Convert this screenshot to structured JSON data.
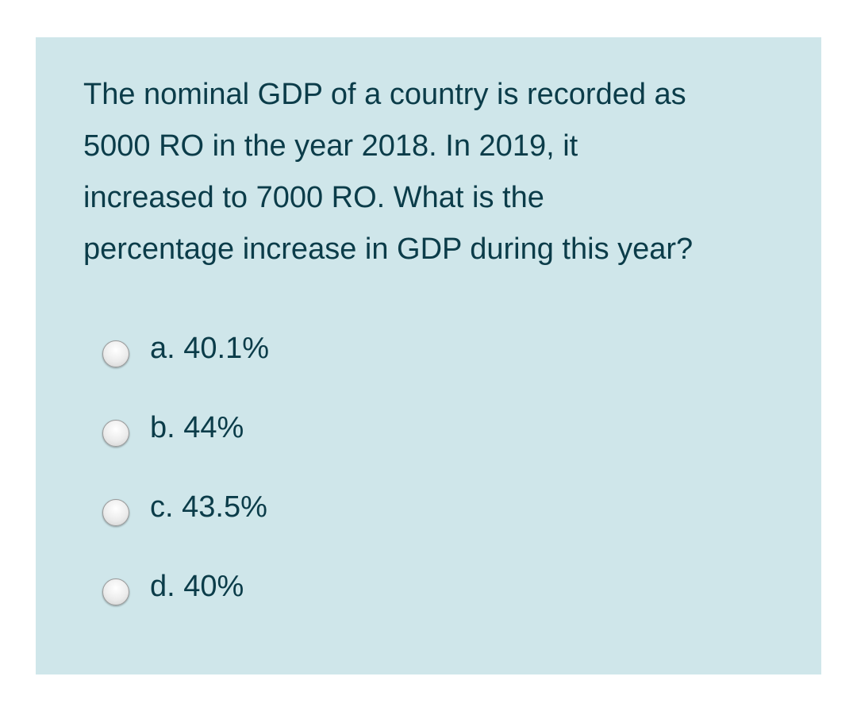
{
  "question": {
    "lines": [
      "The nominal GDP of a country is recorded as",
      "5000 RO in the year 2018. In 2019, it",
      "increased to 7000 RO. What is the",
      "percentage increase in GDP during this year?"
    ]
  },
  "answers": [
    {
      "label": "a. 40.1%",
      "selected": false
    },
    {
      "label": "b. 44%",
      "selected": false
    },
    {
      "label": "c. 43.5%",
      "selected": false
    },
    {
      "label": "d. 40%",
      "selected": false
    }
  ],
  "colors": {
    "card_background": "#cfe6ea",
    "text": "#0b3c49",
    "page_background": "#ffffff"
  }
}
